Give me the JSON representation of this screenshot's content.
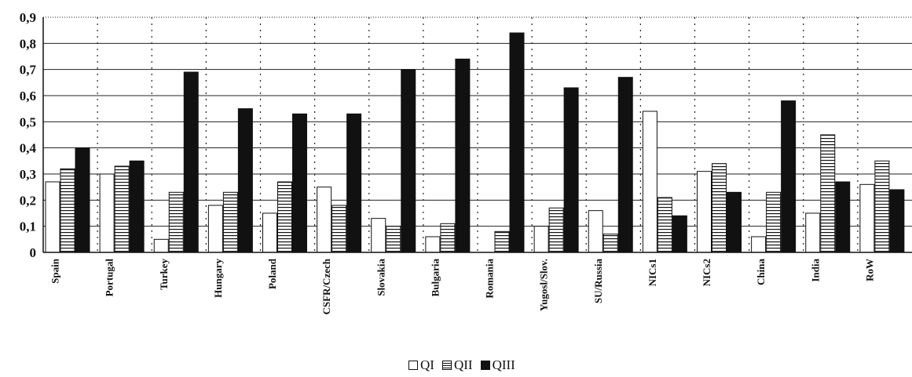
{
  "chart_data": {
    "type": "bar",
    "title": "",
    "xlabel": "",
    "ylabel": "",
    "ylim": [
      0,
      0.9
    ],
    "yticks": [
      "0",
      "0,1",
      "0,2",
      "0,3",
      "0,4",
      "0,5",
      "0,6",
      "0,7",
      "0,8",
      "0,9"
    ],
    "ytick_values": [
      0,
      0.1,
      0.2,
      0.3,
      0.4,
      0.5,
      0.6,
      0.7,
      0.8,
      0.9
    ],
    "grid": true,
    "legend_position": "bottom-center",
    "categories": [
      "Spain",
      "Portugal",
      "Turkey",
      "Hungary",
      "Poland",
      "CSFR/Czech",
      "Slovakia",
      "Bulgaria",
      "Romania",
      "Yugosl/Slov.",
      "SU/Russia",
      "NICs1",
      "NICs2",
      "China",
      "India",
      "RoW"
    ],
    "series": [
      {
        "name": "QI",
        "fill": "white",
        "values": [
          0.27,
          0.3,
          0.05,
          0.18,
          0.15,
          0.25,
          0.13,
          0.06,
          0.0,
          0.1,
          0.16,
          0.54,
          0.31,
          0.06,
          0.15,
          0.26
        ]
      },
      {
        "name": "QII",
        "fill": "hatched",
        "values": [
          0.32,
          0.33,
          0.23,
          0.23,
          0.27,
          0.18,
          0.1,
          0.11,
          0.08,
          0.17,
          0.07,
          0.21,
          0.34,
          0.23,
          0.45,
          0.35
        ]
      },
      {
        "name": "QIII",
        "fill": "black",
        "values": [
          0.4,
          0.35,
          0.69,
          0.55,
          0.53,
          0.53,
          0.7,
          0.74,
          0.84,
          0.63,
          0.67,
          0.14,
          0.23,
          0.58,
          0.27,
          0.24
        ]
      }
    ]
  },
  "legend": {
    "items": [
      {
        "label": "QI"
      },
      {
        "label": "QII"
      },
      {
        "label": "QIII"
      }
    ]
  }
}
